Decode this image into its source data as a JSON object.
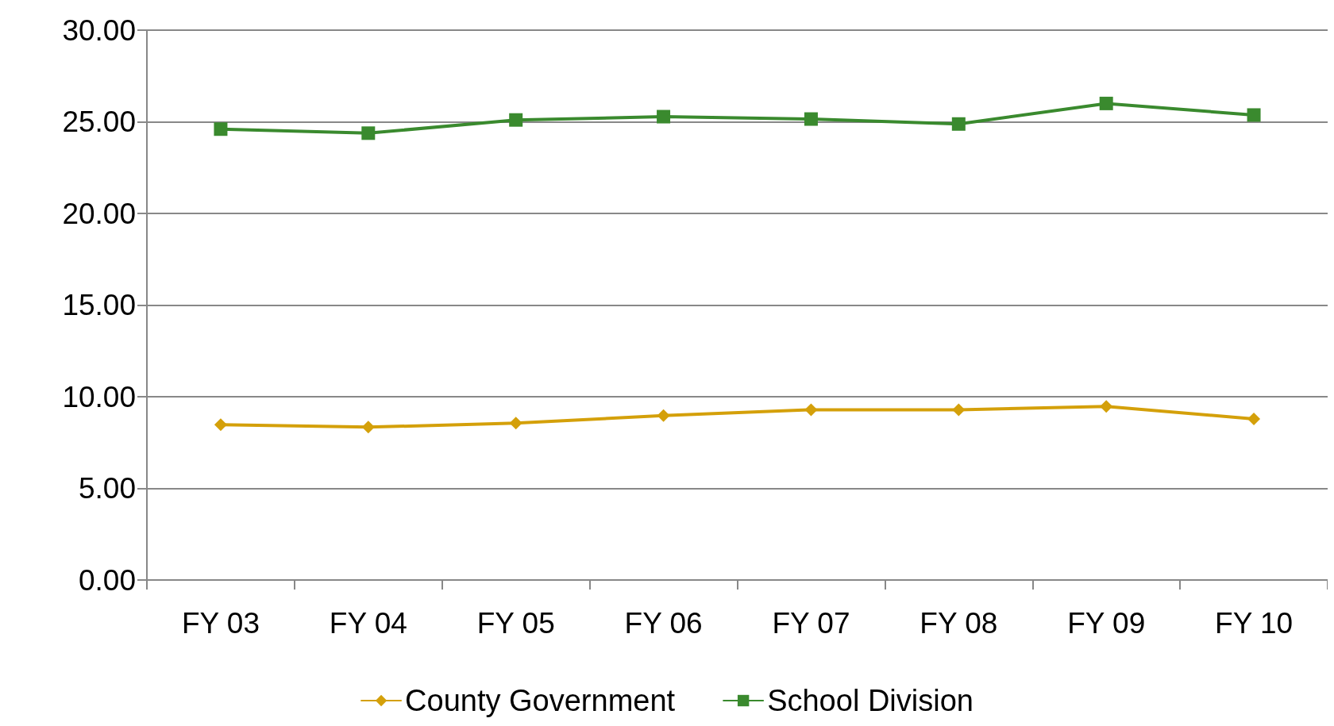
{
  "chart_data": {
    "type": "line",
    "categories": [
      "FY 03",
      "FY 04",
      "FY 05",
      "FY 06",
      "FY 07",
      "FY 08",
      "FY 09",
      "FY 10"
    ],
    "series": [
      {
        "name": "County Government",
        "color": "#d4a00a",
        "marker": "diamond",
        "values": [
          8.47,
          8.34,
          8.56,
          8.97,
          9.29,
          9.29,
          9.47,
          8.79
        ]
      },
      {
        "name": "School Division",
        "color": "#3a8a2e",
        "marker": "square",
        "values": [
          24.6,
          24.38,
          25.1,
          25.28,
          25.15,
          24.88,
          26.0,
          25.37
        ]
      }
    ],
    "ylim": [
      0,
      30
    ],
    "yticks": [
      {
        "value": 0,
        "label": "0.00"
      },
      {
        "value": 5,
        "label": "5.00"
      },
      {
        "value": 10,
        "label": "10.00"
      },
      {
        "value": 15,
        "label": "15.00"
      },
      {
        "value": 20,
        "label": "20.00"
      },
      {
        "value": 25,
        "label": "25.00"
      },
      {
        "value": 30,
        "label": "30.00"
      }
    ],
    "grid": "y",
    "legend": "bottom"
  }
}
